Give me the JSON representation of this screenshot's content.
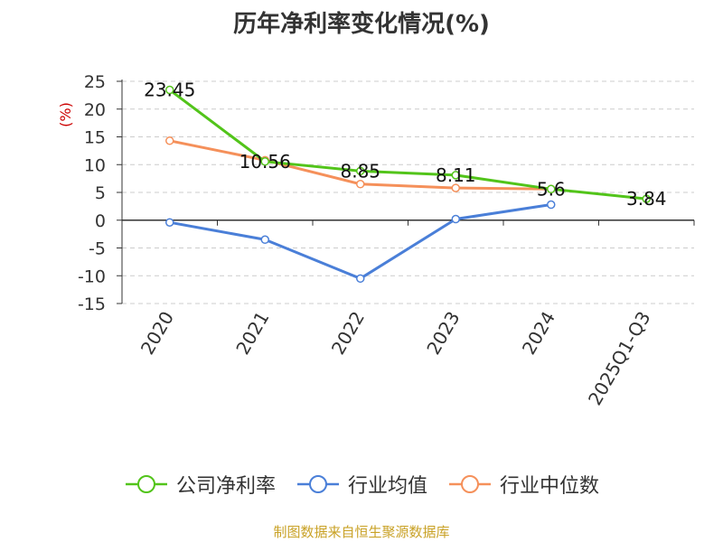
{
  "chart_data": {
    "type": "line",
    "title": "历年净利率变化情况(%)",
    "ylabel": "(%)",
    "categories": [
      "2020",
      "2021",
      "2022",
      "2023",
      "2024",
      "2025Q1-Q3"
    ],
    "ylim": [
      -15,
      25
    ],
    "yticks": [
      25,
      20,
      15,
      10,
      5,
      0,
      -5,
      -10,
      -15
    ],
    "ytick_labels": [
      "25",
      "20",
      "15",
      "10",
      "5",
      "0",
      "-5",
      "-10",
      "-15"
    ],
    "grid": true,
    "legend_position": "bottom",
    "series": [
      {
        "name": "公司净利率",
        "color": "#52c41a",
        "values": [
          23.45,
          10.56,
          8.85,
          8.11,
          5.6,
          3.84
        ],
        "labels": [
          "23.45",
          "10.56",
          "8.85",
          "8.11",
          "5.6",
          "3.84"
        ]
      },
      {
        "name": "行业均值",
        "color": "#4a7fd8",
        "values": [
          -0.4,
          -3.5,
          -10.5,
          0.2,
          2.8,
          null
        ]
      },
      {
        "name": "行业中位数",
        "color": "#f5905a",
        "values": [
          14.3,
          10.8,
          6.5,
          5.8,
          5.6,
          null
        ]
      }
    ]
  },
  "footer": "制图数据来自恒生聚源数据库"
}
